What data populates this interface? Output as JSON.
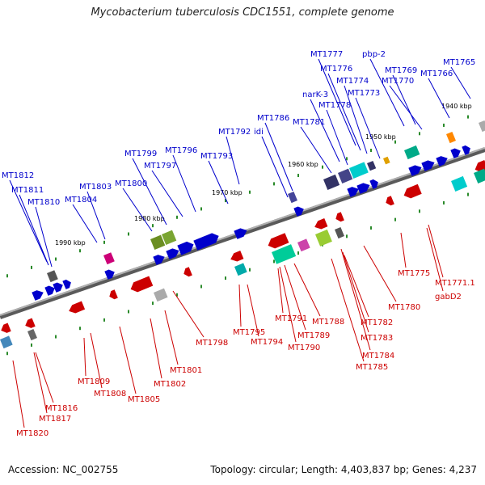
{
  "title": "Mycobacterium tuberculosis CDC1551, complete genome",
  "footer": {
    "accession": "Accession: NC_002755",
    "stats": "Topology: circular; Length: 4,403,837 bp; Genes: 4,237"
  },
  "kbp_labels": [
    "1940 kbp",
    "1950 kbp",
    "1960 kbp",
    "1970 kbp",
    "1980 kbp",
    "1990 kbp"
  ],
  "colors": {
    "forward": "#0000cc",
    "reverse": "#cc0000",
    "backbone": "#808080"
  },
  "forward_genes": [
    "MT1765",
    "MT1766",
    "pbp-2",
    "MT1769",
    "MT1770",
    "MT1777",
    "MT1776",
    "MT1774",
    "MT1773",
    "narK-3",
    "MT1778",
    "MT1781",
    "MT1786",
    "idi",
    "MT1792",
    "MT1793",
    "MT1796",
    "MT1797",
    "MT1799",
    "MT1800",
    "MT1803",
    "MT1804",
    "MT1812",
    "MT1811",
    "MT1810"
  ],
  "reverse_genes": [
    "MT1775",
    "MT1771.1",
    "gabD2",
    "MT1780",
    "MT1782",
    "MT1783",
    "MT1784",
    "MT1785",
    "MT1788",
    "MT1789",
    "MT1790",
    "MT1791",
    "MT1794",
    "MT1795",
    "MT1798",
    "MT1801",
    "MT1802",
    "MT1805",
    "MT1808",
    "MT1809",
    "MT1816",
    "MT1817",
    "MT1820"
  ]
}
